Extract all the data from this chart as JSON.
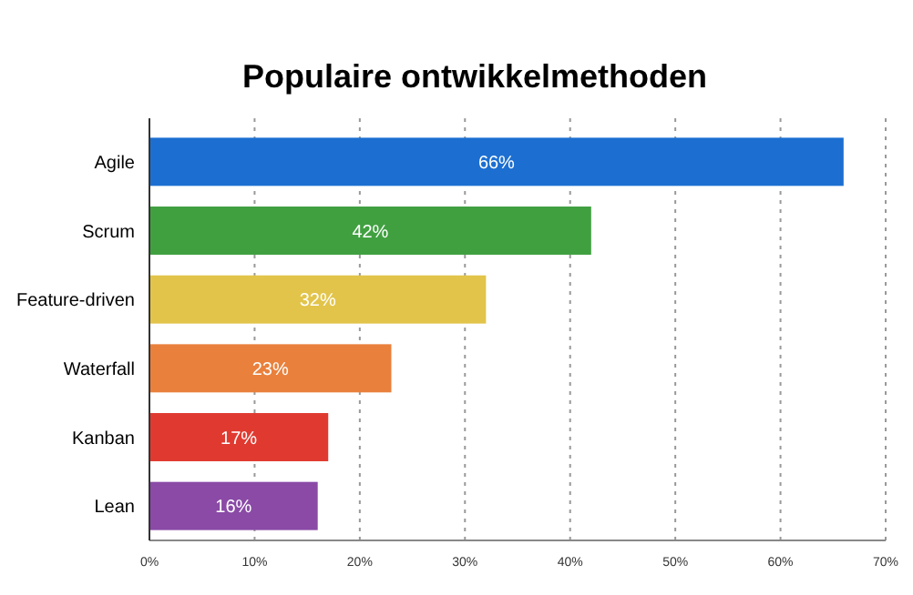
{
  "chart_data": {
    "type": "bar",
    "orientation": "horizontal",
    "title": "Populaire ontwikkelmethoden",
    "categories": [
      "Agile",
      "Scrum",
      "Feature-driven",
      "Waterfall",
      "Kanban",
      "Lean"
    ],
    "values": [
      66,
      42,
      32,
      23,
      17,
      16
    ],
    "value_labels": [
      "66%",
      "42%",
      "32%",
      "23%",
      "17%",
      "16%"
    ],
    "colors": [
      "#1c6fd1",
      "#40a040",
      "#e2c44a",
      "#e9803c",
      "#e03a30",
      "#8a4aa6"
    ],
    "xlim": [
      0,
      70
    ],
    "xticks": [
      {
        "value": 0,
        "label": "0%"
      },
      {
        "value": 10,
        "label": "10%"
      },
      {
        "value": 20,
        "label": "20%"
      },
      {
        "value": 30,
        "label": "30%"
      },
      {
        "value": 40,
        "label": "40%"
      },
      {
        "value": 50,
        "label": "50%"
      },
      {
        "value": 60,
        "label": "60%"
      },
      {
        "value": 70,
        "label": "70%"
      }
    ],
    "grid": "x"
  }
}
